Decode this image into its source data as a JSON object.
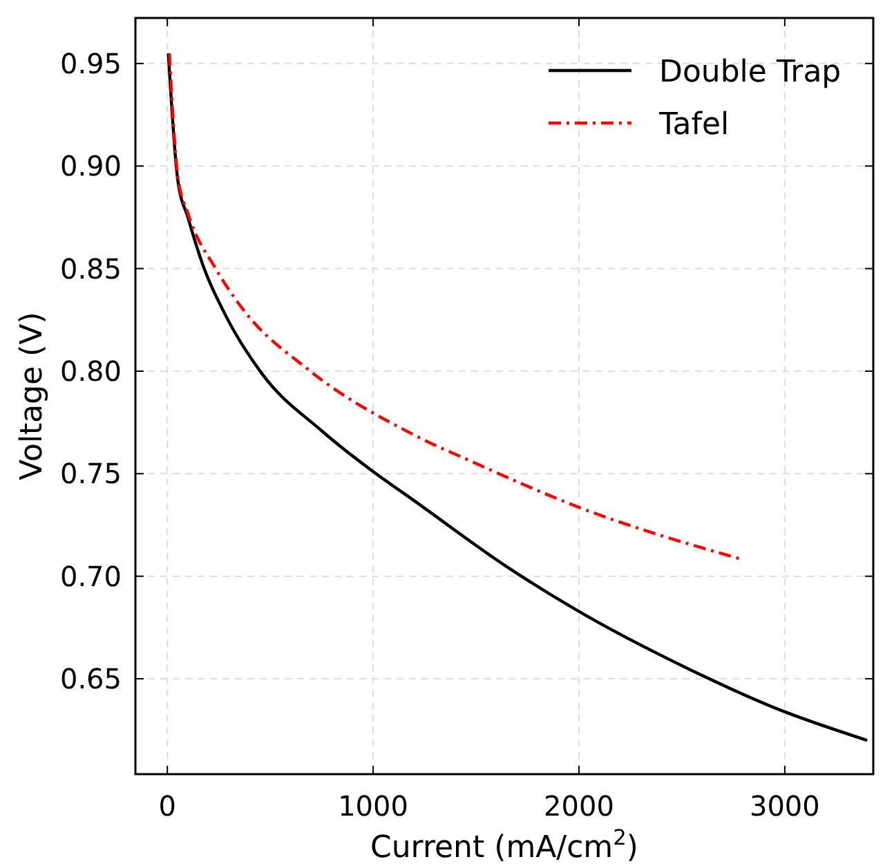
{
  "chart_data": {
    "type": "line",
    "xlabel": "Current (mA/cm$^{2}$)",
    "ylabel": "Voltage (V)",
    "xlim": [
      -155,
      3430
    ],
    "ylim": [
      0.6035,
      0.9722
    ],
    "xticks": [
      0,
      1000,
      2000,
      3000
    ],
    "yticks": [
      {
        "value": 0.65,
        "label": "0.65"
      },
      {
        "value": 0.7,
        "label": "0.70"
      },
      {
        "value": 0.75,
        "label": "0.75"
      },
      {
        "value": 0.8,
        "label": "0.80"
      },
      {
        "value": 0.85,
        "label": "0.85"
      },
      {
        "value": 0.9,
        "label": "0.90"
      },
      {
        "value": 0.95,
        "label": "0.95"
      }
    ],
    "grid": true,
    "legend": "top right",
    "marker": "none",
    "series": [
      {
        "name": "Double Trap",
        "color": "#000000",
        "line_style": "solid",
        "x": [
          5,
          51,
          100,
          179,
          279,
          458,
          749,
          1000,
          1197,
          1644,
          1980,
          2539,
          2964,
          3400
        ],
        "values": [
          0.955,
          0.893,
          0.875,
          0.85,
          0.828,
          0.799,
          0.771,
          0.751,
          0.737,
          0.705,
          0.684,
          0.6545,
          0.6353,
          0.62
        ]
      },
      {
        "name": "Tafel",
        "color": "#ff0000",
        "line_style": "dashdot",
        "x": [
          10,
          51,
          100,
          235,
          369,
          682,
          1197,
          1500,
          1980,
          2800
        ],
        "values": [
          0.955,
          0.895,
          0.877,
          0.85,
          0.83,
          0.801,
          0.769,
          0.755,
          0.7344,
          0.708
        ]
      }
    ]
  }
}
